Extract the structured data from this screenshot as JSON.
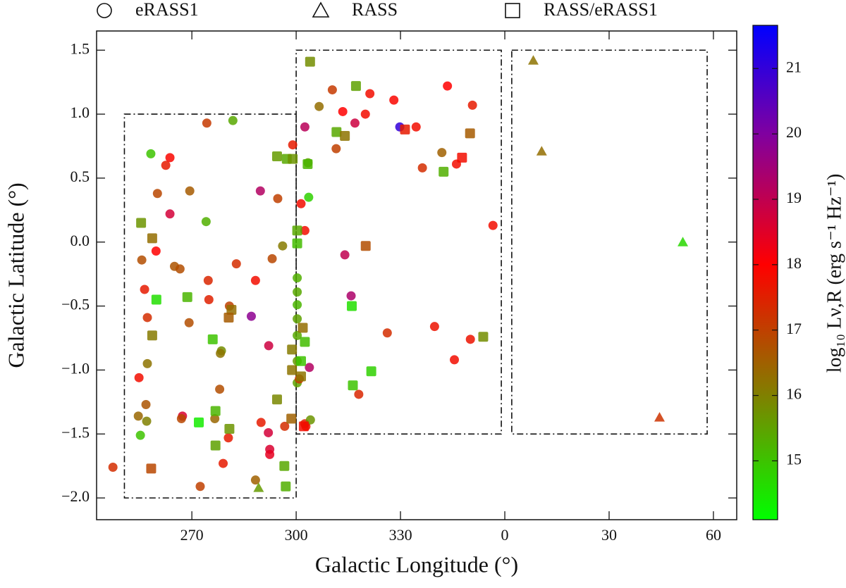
{
  "chart_data": {
    "type": "scatter",
    "xlabel": "Galactic Longitude (°)",
    "ylabel": "Galactic Latitude (°)",
    "colorbar_label": "log₁₀ Lν,R (erg s⁻¹ Hz⁻¹)",
    "xlim": [
      242.6,
      426.7
    ],
    "ylim": [
      -2.17,
      1.65
    ],
    "xticks": [
      270,
      300,
      330,
      {
        "value": 360,
        "label": "0"
      },
      {
        "value": 390,
        "label": "30"
      },
      {
        "value": 420,
        "label": "60"
      }
    ],
    "yticks": [
      {
        "value": 1.5,
        "label": "1.5"
      },
      {
        "value": 1.0,
        "label": "1.0"
      },
      {
        "value": 0.5,
        "label": "0.5"
      },
      {
        "value": 0.0,
        "label": "0.0"
      },
      {
        "value": -0.5,
        "label": "−0.5"
      },
      {
        "value": -1.0,
        "label": "−1.0"
      },
      {
        "value": -1.5,
        "label": "−1.5"
      },
      {
        "value": -2.0,
        "label": "−2.0"
      }
    ],
    "clim": [
      14.1,
      21.66
    ],
    "cticks": [
      15,
      16,
      17,
      18,
      19,
      20,
      21
    ],
    "colormap": [
      {
        "value": 14.1,
        "color": "#00ff00"
      },
      {
        "value": 16.0,
        "color": "#808000"
      },
      {
        "value": 18.0,
        "color": "#ff0000"
      },
      {
        "value": 20.0,
        "color": "#8000a0"
      },
      {
        "value": 21.66,
        "color": "#0000ff"
      }
    ],
    "regions": [
      {
        "x": [
          250.6,
          300
        ],
        "y": [
          -2.0,
          1.0
        ]
      },
      {
        "x": [
          300,
          359
        ],
        "y": [
          -1.5,
          1.5
        ]
      },
      {
        "x": [
          362,
          418.2
        ],
        "y": [
          -1.5,
          1.5
        ]
      }
    ],
    "series": [
      {
        "name": "eRASS1",
        "marker": "circle",
        "x": [
          258.2,
          263.7,
          262.5,
          260.1,
          269.4,
          263.7,
          274.3,
          281.8,
          274.1,
          289.7,
          294.7,
          259.7,
          255.6,
          265.0,
          266.6,
          274.7,
          282.8,
          293.1,
          296.1,
          256.4,
          288.3,
          257.2,
          269.2,
          274.9,
          280.8,
          287.1,
          292.1,
          278.5,
          278.2,
          278.0,
          257.2,
          254.8,
          256.8,
          257.0,
          254.6,
          255.2,
          247.3,
          267.3,
          267.0,
          276.6,
          280.5,
          279.0,
          272.4,
          289.9,
          292.0,
          292.4,
          292.4,
          288.3,
          296.7,
          299.0,
          300.3,
          300.3,
          300.3,
          300.3,
          300.3,
          300.3,
          300.3,
          302.5,
          303.4,
          303.6,
          301.4,
          302.5,
          306.6,
          310.4,
          311.5,
          313.4,
          316.9,
          319.9,
          321.2,
          328.1,
          329.8,
          334.5,
          336.3,
          343.5,
          341.9,
          346.1,
          350.7,
          356.6,
          314.0,
          315.8,
          303.8,
          300.9,
          302.5,
          302.8,
          304.1,
          318.0,
          326.2,
          339.8,
          345.5,
          350.1
        ],
        "y": [
          0.69,
          0.66,
          0.6,
          0.38,
          0.4,
          0.22,
          0.93,
          0.95,
          0.16,
          0.4,
          0.34,
          -0.07,
          -0.14,
          -0.19,
          -0.21,
          -0.3,
          -0.17,
          -0.13,
          -0.03,
          -0.37,
          -0.3,
          -0.59,
          -0.63,
          -0.45,
          -0.5,
          -0.58,
          -0.81,
          -0.85,
          -0.87,
          -1.15,
          -0.95,
          -1.06,
          -1.27,
          -1.4,
          -1.36,
          -1.51,
          -1.76,
          -1.36,
          -1.38,
          -1.38,
          -1.53,
          -1.73,
          -1.91,
          -1.41,
          -1.49,
          -1.62,
          -1.66,
          -1.86,
          -1.44,
          0.76,
          -0.28,
          -0.39,
          -0.49,
          -0.6,
          -0.73,
          -0.93,
          -1.1,
          0.9,
          0.62,
          0.35,
          0.3,
          0.09,
          1.06,
          1.19,
          0.73,
          1.02,
          0.93,
          1.0,
          1.16,
          1.11,
          0.9,
          0.9,
          0.58,
          1.22,
          0.7,
          0.61,
          1.07,
          0.13,
          -0.1,
          -0.42,
          -0.98,
          -1.07,
          -1.42,
          -1.44,
          -1.39,
          -1.19,
          -0.71,
          -0.66,
          -0.92,
          -0.76
        ],
        "c": [
          15.0,
          17.9,
          17.6,
          16.9,
          16.6,
          18.7,
          17.1,
          15.4,
          15.3,
          19.2,
          17.0,
          18.0,
          16.8,
          16.7,
          16.8,
          17.4,
          17.3,
          16.9,
          16.1,
          17.6,
          17.8,
          17.3,
          16.8,
          17.5,
          17.0,
          19.8,
          18.8,
          15.8,
          16.2,
          16.8,
          16.2,
          17.8,
          16.7,
          16.0,
          16.4,
          15.0,
          17.3,
          18.6,
          16.9,
          16.4,
          17.6,
          17.6,
          17.0,
          17.6,
          18.7,
          18.6,
          18.4,
          16.5,
          17.3,
          17.6,
          15.3,
          15.4,
          15.2,
          15.5,
          15.4,
          15.6,
          15.5,
          19.1,
          15.5,
          14.8,
          17.8,
          17.8,
          16.3,
          17.1,
          17.0,
          18.0,
          18.8,
          17.8,
          17.8,
          17.9,
          21.0,
          17.8,
          17.3,
          18.0,
          16.5,
          17.8,
          17.6,
          17.8,
          19.0,
          19.3,
          19.2,
          17.1,
          17.5,
          17.7,
          15.7,
          17.4,
          17.3,
          17.7,
          17.8,
          17.7
        ]
      },
      {
        "name": "RASS",
        "marker": "triangle",
        "x": [
          368.2,
          370.6,
          411.2,
          404.5,
          289.2
        ],
        "y": [
          1.42,
          0.71,
          0.0,
          -1.37,
          -1.92
        ],
        "c": [
          16.2,
          16.3,
          14.7,
          17.2,
          15.6
        ]
      },
      {
        "name": "RASS/eRASS1",
        "marker": "square",
        "x": [
          255.4,
          258.6,
          258.6,
          259.8,
          268.7,
          276.0,
          281.4,
          280.6,
          272.0,
          276.8,
          276.8,
          280.8,
          258.3,
          294.5,
          297.3,
          299.0,
          300.3,
          300.3,
          294.5,
          298.8,
          298.8,
          298.6,
          296.6,
          297.0,
          304.0,
          317.2,
          311.6,
          314.0,
          303.3,
          320.0,
          316.0,
          301.9,
          302.5,
          301.4,
          316.3,
          321.6,
          301.4,
          302.2,
          331.3,
          342.4,
          347.7,
          350.0,
          353.8
        ],
        "y": [
          0.15,
          0.03,
          -0.73,
          -0.45,
          -0.43,
          -0.76,
          -0.53,
          -0.59,
          -1.41,
          -1.32,
          -1.59,
          -1.46,
          -1.77,
          0.67,
          0.65,
          0.65,
          0.09,
          -0.01,
          -1.23,
          -0.84,
          -1.0,
          -1.38,
          -1.75,
          -1.91,
          1.41,
          1.22,
          0.86,
          0.83,
          0.61,
          -0.03,
          -0.5,
          -0.67,
          -0.78,
          -0.93,
          -1.12,
          -1.01,
          -1.05,
          -1.44,
          0.88,
          0.55,
          0.66,
          0.85,
          -0.74
        ],
        "c": [
          15.7,
          16.3,
          16.1,
          14.6,
          15.2,
          15.0,
          16.3,
          16.6,
          14.4,
          15.2,
          15.5,
          15.7,
          16.9,
          15.6,
          15.4,
          15.7,
          15.4,
          15.1,
          15.9,
          16.1,
          16.2,
          16.5,
          15.4,
          15.3,
          15.8,
          15.5,
          15.4,
          16.2,
          15.2,
          16.8,
          14.6,
          16.3,
          15.1,
          15.0,
          15.0,
          14.8,
          16.2,
          17.8,
          17.6,
          15.3,
          17.8,
          16.6,
          15.8
        ]
      }
    ]
  }
}
